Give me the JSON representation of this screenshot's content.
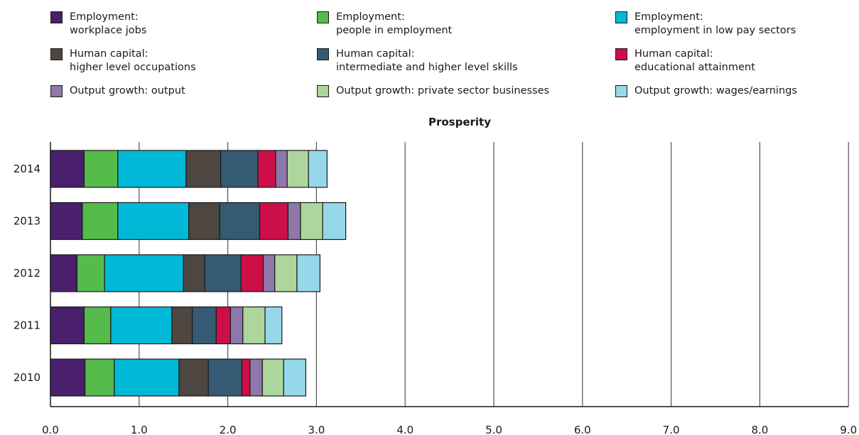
{
  "legend": [
    {
      "line1": "Employment:",
      "line2": "workplace jobs",
      "color": "#4a1f6b"
    },
    {
      "line1": "Employment:",
      "line2": "people in employment",
      "color": "#55bb4a"
    },
    {
      "line1": "Employment:",
      "line2": "employment in low pay sectors",
      "color": "#00b9d6"
    },
    {
      "line1": "Human capital:",
      "line2": "higher level occupations",
      "color": "#4e4640"
    },
    {
      "line1": "Human capital:",
      "line2": "intermediate and higher level skills",
      "color": "#355a74"
    },
    {
      "line1": "Human capital:",
      "line2": "educational attainment",
      "color": "#cc0f48"
    },
    {
      "line1": "Output growth: output",
      "line2": "",
      "color": "#8f77aa"
    },
    {
      "line1": "Output growth: private sector businesses",
      "line2": "",
      "color": "#acd69b"
    },
    {
      "line1": "Output growth: wages/earnings",
      "line2": "",
      "color": "#95d8ea"
    }
  ],
  "chart_data": {
    "type": "bar",
    "orientation": "horizontal",
    "stacked": true,
    "title": "Prosperity",
    "xlabel": "",
    "ylabel": "",
    "xlim": [
      0,
      9
    ],
    "xticks": [
      "0.0",
      "1.0",
      "2.0",
      "3.0",
      "4.0",
      "5.0",
      "6.0",
      "7.0",
      "8.0",
      "9.0"
    ],
    "grid": "vertical",
    "legend_position": "top",
    "categories": [
      "2014",
      "2013",
      "2012",
      "2011",
      "2010"
    ],
    "series": [
      {
        "name": "Employment: workplace jobs",
        "color": "#4a1f6b",
        "values": [
          0.38,
          0.36,
          0.3,
          0.38,
          0.39
        ]
      },
      {
        "name": "Employment: people in employment",
        "color": "#55bb4a",
        "values": [
          0.38,
          0.4,
          0.31,
          0.3,
          0.33
        ]
      },
      {
        "name": "Employment: employment in low pay sectors",
        "color": "#00b9d6",
        "values": [
          0.77,
          0.8,
          0.89,
          0.69,
          0.73
        ]
      },
      {
        "name": "Human capital: higher level occupations",
        "color": "#4e4640",
        "values": [
          0.39,
          0.35,
          0.24,
          0.23,
          0.33
        ]
      },
      {
        "name": "Human capital: intermediate and higher level skills",
        "color": "#355a74",
        "values": [
          0.42,
          0.45,
          0.41,
          0.27,
          0.38
        ]
      },
      {
        "name": "Human capital: educational attainment",
        "color": "#cc0f48",
        "values": [
          0.2,
          0.32,
          0.25,
          0.16,
          0.09
        ]
      },
      {
        "name": "Output growth: output",
        "color": "#8f77aa",
        "values": [
          0.13,
          0.14,
          0.13,
          0.14,
          0.14
        ]
      },
      {
        "name": "Output growth: private sector businesses",
        "color": "#acd69b",
        "values": [
          0.24,
          0.25,
          0.25,
          0.25,
          0.24
        ]
      },
      {
        "name": "Output growth: wages/earnings",
        "color": "#95d8ea",
        "values": [
          0.21,
          0.26,
          0.26,
          0.19,
          0.25
        ]
      }
    ]
  }
}
